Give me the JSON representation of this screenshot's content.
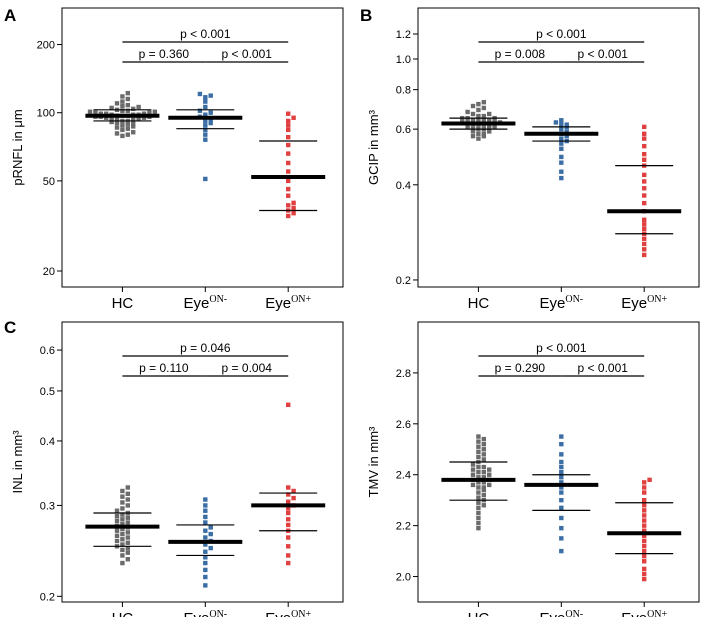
{
  "chart_data": [
    {
      "type": "scatter",
      "panel_label": "A",
      "ylabel": "pRNFL in μm",
      "yscale": "log",
      "ylim": [
        17,
        290
      ],
      "yticks": [
        20,
        50,
        100,
        200
      ],
      "categories": [
        "HC",
        "EyeON-",
        "EyeON+"
      ],
      "category_labels": [
        {
          "main": "HC",
          "sup": ""
        },
        {
          "main": "Eye",
          "sup": "ON-"
        },
        {
          "main": "Eye",
          "sup": "ON+"
        }
      ],
      "groups": [
        {
          "name": "HC",
          "color": "#6b6b6b",
          "mean": 97,
          "sd_lower": 92,
          "sd_upper": 103,
          "values": [
            79,
            80,
            81,
            82,
            84,
            85,
            86,
            87,
            88,
            89,
            90,
            90,
            91,
            92,
            92,
            93,
            93,
            94,
            94,
            95,
            95,
            96,
            96,
            96,
            97,
            97,
            97,
            98,
            98,
            98,
            99,
            99,
            99,
            100,
            100,
            101,
            101,
            102,
            102,
            103,
            104,
            105,
            106,
            107,
            108,
            110,
            112,
            115,
            118,
            122
          ]
        },
        {
          "name": "EyeON-",
          "color": "#3a6ea5",
          "mean": 95,
          "sd_lower": 85,
          "sd_upper": 103,
          "values": [
            51,
            76,
            80,
            84,
            88,
            90,
            92,
            94,
            96,
            98,
            100,
            102,
            106,
            112,
            117,
            119,
            121
          ]
        },
        {
          "name": "EyeON+",
          "color": "#e04040",
          "mean": 52,
          "sd_lower": 37,
          "sd_upper": 75,
          "values": [
            35,
            36,
            37,
            38,
            39,
            40,
            43,
            46,
            50,
            55,
            60,
            66,
            72,
            78,
            84,
            88,
            92,
            95,
            99
          ]
        }
      ],
      "comparisons": [
        {
          "from": 0,
          "to": 1,
          "label": "p = 0.360"
        },
        {
          "from": 1,
          "to": 2,
          "label": "p < 0.001"
        },
        {
          "from": 0,
          "to": 2,
          "label": "p < 0.001"
        }
      ]
    },
    {
      "type": "scatter",
      "panel_label": "B",
      "ylabel": "GCIP in mm³",
      "yscale": "log",
      "ylim": [
        0.19,
        1.45
      ],
      "yticks": [
        0.2,
        0.4,
        0.6,
        0.8,
        1.0,
        1.2
      ],
      "ytick_labels": [
        "0.2",
        "0.4",
        "0.6",
        "0.8",
        "1.0",
        "1.2"
      ],
      "categories": [
        "HC",
        "EyeON-",
        "EyeON+"
      ],
      "category_labels": [
        {
          "main": "HC",
          "sup": ""
        },
        {
          "main": "Eye",
          "sup": "ON-"
        },
        {
          "main": "Eye",
          "sup": "ON+"
        }
      ],
      "groups": [
        {
          "name": "HC",
          "color": "#6b6b6b",
          "mean": 0.625,
          "sd_lower": 0.6,
          "sd_upper": 0.65,
          "values": [
            0.56,
            0.57,
            0.57,
            0.58,
            0.58,
            0.59,
            0.59,
            0.6,
            0.6,
            0.6,
            0.61,
            0.61,
            0.61,
            0.62,
            0.62,
            0.62,
            0.62,
            0.63,
            0.63,
            0.63,
            0.63,
            0.64,
            0.64,
            0.64,
            0.64,
            0.65,
            0.65,
            0.65,
            0.66,
            0.66,
            0.67,
            0.67,
            0.68,
            0.69,
            0.7,
            0.71,
            0.72,
            0.73
          ]
        },
        {
          "name": "EyeON-",
          "color": "#3a6ea5",
          "mean": 0.58,
          "sd_lower": 0.55,
          "sd_upper": 0.61,
          "values": [
            0.42,
            0.44,
            0.47,
            0.49,
            0.52,
            0.54,
            0.55,
            0.56,
            0.57,
            0.58,
            0.59,
            0.6,
            0.61,
            0.62,
            0.62,
            0.63,
            0.64
          ]
        },
        {
          "name": "EyeON+",
          "color": "#e04040",
          "mean": 0.33,
          "sd_lower": 0.28,
          "sd_upper": 0.46,
          "values": [
            0.24,
            0.25,
            0.26,
            0.27,
            0.28,
            0.29,
            0.3,
            0.31,
            0.33,
            0.35,
            0.37,
            0.39,
            0.41,
            0.43,
            0.46,
            0.48,
            0.5,
            0.53,
            0.56,
            0.58,
            0.61
          ]
        }
      ],
      "comparisons": [
        {
          "from": 0,
          "to": 1,
          "label": "p = 0.008"
        },
        {
          "from": 1,
          "to": 2,
          "label": "p < 0.001"
        },
        {
          "from": 0,
          "to": 2,
          "label": "p < 0.001"
        }
      ]
    },
    {
      "type": "scatter",
      "panel_label": "C",
      "ylabel": "INL in mm³",
      "yscale": "log",
      "ylim": [
        0.195,
        0.68
      ],
      "yticks": [
        0.2,
        0.3,
        0.4,
        0.5,
        0.6
      ],
      "ytick_labels": [
        "0.2",
        "0.3",
        "0.4",
        "0.5",
        "0.6"
      ],
      "categories": [
        "HC",
        "EyeON-",
        "EyeON+"
      ],
      "category_labels": [
        {
          "main": "HC",
          "sup": ""
        },
        {
          "main": "Eye",
          "sup": "ON-"
        },
        {
          "main": "Eye",
          "sup": "ON+"
        }
      ],
      "groups": [
        {
          "name": "HC",
          "color": "#6b6b6b",
          "mean": 0.273,
          "sd_lower": 0.25,
          "sd_upper": 0.29,
          "values": [
            0.232,
            0.236,
            0.24,
            0.243,
            0.246,
            0.248,
            0.25,
            0.252,
            0.254,
            0.256,
            0.258,
            0.26,
            0.262,
            0.264,
            0.266,
            0.268,
            0.27,
            0.272,
            0.274,
            0.276,
            0.278,
            0.28,
            0.282,
            0.284,
            0.286,
            0.288,
            0.29,
            0.293,
            0.296,
            0.3,
            0.304,
            0.308,
            0.312,
            0.316,
            0.32,
            0.325
          ]
        },
        {
          "name": "EyeON-",
          "color": "#3a6ea5",
          "mean": 0.255,
          "sd_lower": 0.24,
          "sd_upper": 0.275,
          "values": [
            0.21,
            0.218,
            0.225,
            0.232,
            0.238,
            0.244,
            0.248,
            0.252,
            0.256,
            0.26,
            0.264,
            0.268,
            0.272,
            0.278,
            0.285,
            0.293,
            0.3,
            0.308
          ]
        },
        {
          "name": "EyeON+",
          "color": "#e04040",
          "mean": 0.3,
          "sd_lower": 0.268,
          "sd_upper": 0.317,
          "values": [
            0.232,
            0.24,
            0.25,
            0.26,
            0.268,
            0.275,
            0.282,
            0.29,
            0.296,
            0.3,
            0.305,
            0.31,
            0.315,
            0.32,
            0.325,
            0.47
          ]
        }
      ],
      "comparisons": [
        {
          "from": 0,
          "to": 1,
          "label": "p = 0.110"
        },
        {
          "from": 1,
          "to": 2,
          "label": "p = 0.004"
        },
        {
          "from": 0,
          "to": 2,
          "label": "p = 0.046"
        }
      ]
    },
    {
      "type": "scatter",
      "panel_label": "",
      "ylabel": "TMV in mm³",
      "yscale": "linear",
      "ylim": [
        1.9,
        3.0
      ],
      "yticks": [
        2.0,
        2.2,
        2.4,
        2.6,
        2.8
      ],
      "ytick_labels": [
        "2.0",
        "2.2",
        "2.4",
        "2.6",
        "2.8"
      ],
      "categories": [
        "HC",
        "EyeON-",
        "EyeON+"
      ],
      "category_labels": [
        {
          "main": "HC",
          "sup": ""
        },
        {
          "main": "Eye",
          "sup": "ON-"
        },
        {
          "main": "Eye",
          "sup": "ON+"
        }
      ],
      "groups": [
        {
          "name": "HC",
          "color": "#6b6b6b",
          "mean": 2.38,
          "sd_lower": 2.3,
          "sd_upper": 2.45,
          "values": [
            2.19,
            2.21,
            2.23,
            2.25,
            2.27,
            2.28,
            2.29,
            2.3,
            2.31,
            2.32,
            2.33,
            2.34,
            2.35,
            2.35,
            2.36,
            2.36,
            2.37,
            2.37,
            2.38,
            2.38,
            2.39,
            2.39,
            2.4,
            2.4,
            2.41,
            2.41,
            2.42,
            2.42,
            2.43,
            2.43,
            2.44,
            2.45,
            2.46,
            2.47,
            2.48,
            2.49,
            2.5,
            2.51,
            2.52,
            2.53,
            2.54,
            2.55
          ]
        },
        {
          "name": "EyeON-",
          "color": "#3a6ea5",
          "mean": 2.36,
          "sd_lower": 2.26,
          "sd_upper": 2.4,
          "values": [
            2.1,
            2.15,
            2.19,
            2.23,
            2.27,
            2.3,
            2.33,
            2.35,
            2.37,
            2.39,
            2.41,
            2.43,
            2.45,
            2.48,
            2.52,
            2.55
          ]
        },
        {
          "name": "EyeON+",
          "color": "#e04040",
          "mean": 2.17,
          "sd_lower": 2.09,
          "sd_upper": 2.29,
          "values": [
            1.99,
            2.01,
            2.03,
            2.06,
            2.08,
            2.1,
            2.12,
            2.14,
            2.16,
            2.18,
            2.2,
            2.22,
            2.24,
            2.26,
            2.28,
            2.3,
            2.33,
            2.35,
            2.37,
            2.38
          ]
        }
      ],
      "comparisons": [
        {
          "from": 0,
          "to": 1,
          "label": "p = 0.290"
        },
        {
          "from": 1,
          "to": 2,
          "label": "p < 0.001"
        },
        {
          "from": 0,
          "to": 2,
          "label": "p < 0.001"
        }
      ]
    }
  ]
}
